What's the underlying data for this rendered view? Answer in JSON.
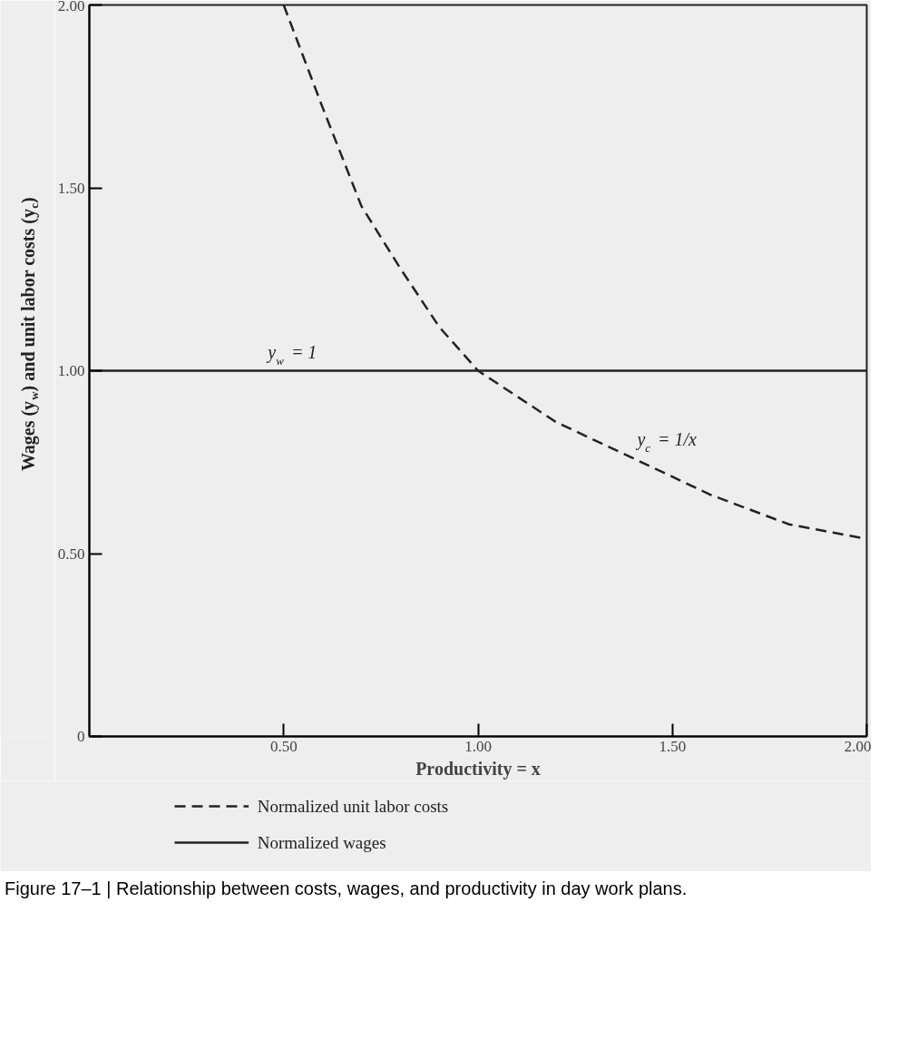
{
  "chart_data": {
    "type": "line",
    "xlabel": "Productivity = x",
    "ylabel": "Wages (y$_{w}$) and unit labor costs (y$_{c}$)",
    "xlim": [
      0,
      2.0
    ],
    "ylim": [
      0,
      2.0
    ],
    "xticks": [
      {
        "value": 0.5,
        "label": "0.50"
      },
      {
        "value": 1.0,
        "label": "1.00"
      },
      {
        "value": 1.5,
        "label": "1.50"
      },
      {
        "value": 2.0,
        "label": "2.00"
      }
    ],
    "yticks": [
      0,
      {
        "value": 0.5,
        "label": "0.50"
      },
      {
        "value": 1.0,
        "label": "1.00"
      },
      {
        "value": 1.5,
        "label": "1.50"
      },
      {
        "value": 2.0,
        "label": "2.00"
      }
    ],
    "series": [
      {
        "name": "Normalized unit labor costs",
        "color": "#222222",
        "line_style": "dashed",
        "x": [
          0.5,
          0.6,
          0.7,
          0.8,
          0.9,
          1.0,
          1.2,
          1.4,
          1.6,
          1.8,
          2.0
        ],
        "values": [
          2.0,
          1.72,
          1.45,
          1.28,
          1.12,
          1.0,
          0.86,
          0.76,
          0.66,
          0.58,
          0.54
        ]
      },
      {
        "name": "Normalized wages",
        "color": "#222222",
        "line_style": "solid",
        "x": [
          0,
          2.0
        ],
        "values": [
          1.0,
          1.0
        ]
      }
    ],
    "annotations": [
      {
        "text": "y$_{w}$ = 1",
        "x": 0.45,
        "y": 1.0
      },
      {
        "text": "y$_{c}$ = 1/x",
        "x": 1.4,
        "y": 0.76
      },
      "Figure 17–1 | Relationship between costs, wages, and productivity in day work plans."
    ],
    "legend": "bottom"
  }
}
